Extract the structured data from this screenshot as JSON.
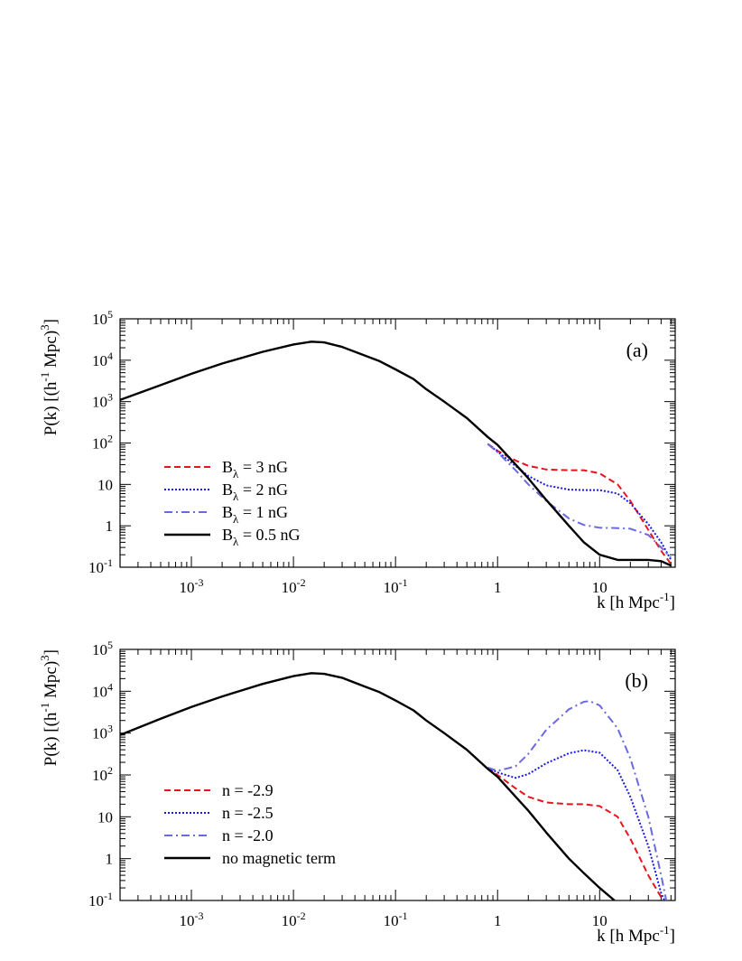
{
  "chart_data": [
    {
      "type": "line",
      "panel_label": "(a)",
      "xlabel": {
        "main": "k [h Mpc",
        "sup": "-1",
        "end": "]"
      },
      "ylabel": {
        "p1": "P(k) [(h",
        "s1": "-1",
        "p2": " Mpc)",
        "s2": "3",
        "p3": "]"
      },
      "xscale": "log",
      "yscale": "log",
      "xlim": [
        0.0002,
        55
      ],
      "ylim": [
        0.1,
        100000
      ],
      "x_ticks": [
        {
          "value": 0.001,
          "base": "10",
          "exp": "-3"
        },
        {
          "value": 0.01,
          "base": "10",
          "exp": "-2"
        },
        {
          "value": 0.1,
          "base": "10",
          "exp": "-1"
        },
        {
          "value": 1,
          "base": "1",
          "exp": ""
        },
        {
          "value": 10,
          "base": "10",
          "exp": ""
        }
      ],
      "y_ticks": [
        {
          "value": 0.1,
          "base": "10",
          "exp": "-1"
        },
        {
          "value": 1,
          "base": "1",
          "exp": ""
        },
        {
          "value": 10,
          "base": "10",
          "exp": ""
        },
        {
          "value": 100,
          "base": "10",
          "exp": "2"
        },
        {
          "value": 1000,
          "base": "10",
          "exp": "3"
        },
        {
          "value": 10000,
          "base": "10",
          "exp": "4"
        },
        {
          "value": 100000,
          "base": "10",
          "exp": "5"
        }
      ],
      "legend_position": "bottom-left",
      "series": [
        {
          "label": {
            "pre": "B",
            "sub": "λ",
            "post": " = 3 nG"
          },
          "color": "#e8141c",
          "style": "dashed",
          "x": [
            0.8,
            1,
            1.5,
            2,
            3,
            5,
            7,
            10,
            15,
            20,
            30,
            40,
            50
          ],
          "y": [
            95,
            65,
            38,
            28,
            23,
            22,
            22,
            18.5,
            10,
            4,
            0.8,
            0.25,
            0.12
          ]
        },
        {
          "label": {
            "pre": "B",
            "sub": "λ",
            "post": " = 2 nG"
          },
          "color": "#1a1ae6",
          "style": "dotted",
          "x": [
            0.8,
            1,
            1.5,
            2,
            3,
            5,
            7,
            10,
            15,
            20,
            30,
            40,
            50
          ],
          "y": [
            95,
            62,
            28,
            16,
            9.5,
            7.5,
            7.3,
            7.3,
            6,
            3.5,
            1.1,
            0.4,
            0.15
          ]
        },
        {
          "label": {
            "pre": "B",
            "sub": "λ",
            "post": " = 1 nG"
          },
          "color": "#6a6ae0",
          "style": "dashdot",
          "x": [
            0.8,
            1,
            1.5,
            2,
            3,
            5,
            7,
            10,
            15,
            20,
            30,
            40,
            50
          ],
          "y": [
            95,
            60,
            22,
            10,
            4,
            1.5,
            1.05,
            0.9,
            0.88,
            0.85,
            0.6,
            0.3,
            0.17
          ]
        },
        {
          "label": {
            "pre": "B",
            "sub": "λ",
            "post": " = 0.5 nG"
          },
          "color": "#000000",
          "style": "solid",
          "x": [
            0.0002,
            0.0005,
            0.001,
            0.002,
            0.005,
            0.01,
            0.015,
            0.02,
            0.03,
            0.05,
            0.07,
            0.1,
            0.15,
            0.2,
            0.3,
            0.5,
            0.8,
            1,
            2,
            3,
            5,
            7,
            10,
            15,
            20,
            30,
            40,
            50
          ],
          "y": [
            1100,
            2500,
            4700,
            8300,
            16000,
            24000,
            28000,
            27000,
            21000,
            13000,
            9500,
            6000,
            3500,
            2000,
            1000,
            400,
            140,
            90,
            14,
            4.2,
            1,
            0.4,
            0.2,
            0.15,
            0.15,
            0.15,
            0.14,
            0.11
          ]
        }
      ]
    },
    {
      "type": "line",
      "panel_label": "(b)",
      "xlabel": {
        "main": "k [h Mpc",
        "sup": "-1",
        "end": "]"
      },
      "ylabel": {
        "p1": "P(k) [(h",
        "s1": "-1",
        "p2": " Mpc)",
        "s2": "3",
        "p3": "]"
      },
      "xscale": "log",
      "yscale": "log",
      "xlim": [
        0.0002,
        55
      ],
      "ylim": [
        0.1,
        100000
      ],
      "x_ticks": [
        {
          "value": 0.001,
          "base": "10",
          "exp": "-3"
        },
        {
          "value": 0.01,
          "base": "10",
          "exp": "-2"
        },
        {
          "value": 0.1,
          "base": "10",
          "exp": "-1"
        },
        {
          "value": 1,
          "base": "1",
          "exp": ""
        },
        {
          "value": 10,
          "base": "10",
          "exp": ""
        }
      ],
      "y_ticks": [
        {
          "value": 0.1,
          "base": "10",
          "exp": "-1"
        },
        {
          "value": 1,
          "base": "1",
          "exp": ""
        },
        {
          "value": 10,
          "base": "10",
          "exp": ""
        },
        {
          "value": 100,
          "base": "10",
          "exp": "2"
        },
        {
          "value": 1000,
          "base": "10",
          "exp": "3"
        },
        {
          "value": 10000,
          "base": "10",
          "exp": "4"
        },
        {
          "value": 100000,
          "base": "10",
          "exp": "5"
        }
      ],
      "legend_position": "bottom-left",
      "series": [
        {
          "label": {
            "pre": "n = -2.9",
            "sub": "",
            "post": ""
          },
          "color": "#e8141c",
          "style": "dashed",
          "x": [
            0.8,
            1,
            1.5,
            2,
            3,
            5,
            7,
            10,
            15,
            20,
            30,
            40,
            45
          ],
          "y": [
            150,
            100,
            48,
            30,
            22,
            20,
            20,
            18,
            10,
            3,
            0.4,
            0.12,
            0.08
          ]
        },
        {
          "label": {
            "pre": "n = -2.5",
            "sub": "",
            "post": ""
          },
          "color": "#1a1ae6",
          "style": "dotted",
          "x": [
            0.8,
            1,
            1.5,
            2,
            3,
            5,
            7,
            10,
            15,
            20,
            30,
            40,
            45
          ],
          "y": [
            150,
            115,
            85,
            105,
            190,
            330,
            390,
            340,
            130,
            30,
            2,
            0.15,
            0.08
          ]
        },
        {
          "label": {
            "pre": "n = -2.0",
            "sub": "",
            "post": ""
          },
          "color": "#6a6ae0",
          "style": "dashdot",
          "x": [
            0.8,
            1,
            1.5,
            2,
            3,
            5,
            7,
            8,
            10,
            15,
            20,
            30,
            40,
            45
          ],
          "y": [
            150,
            125,
            160,
            320,
            1200,
            3700,
            5600,
            5800,
            4600,
            1300,
            250,
            10,
            0.4,
            0.1
          ]
        },
        {
          "label": {
            "pre": "no magnetic term",
            "sub": "",
            "post": ""
          },
          "color": "#000000",
          "style": "solid",
          "x": [
            0.0002,
            0.0005,
            0.001,
            0.002,
            0.005,
            0.01,
            0.015,
            0.02,
            0.03,
            0.05,
            0.07,
            0.1,
            0.15,
            0.2,
            0.3,
            0.5,
            0.8,
            1,
            2,
            3,
            5,
            7,
            10,
            14
          ],
          "y": [
            900,
            2200,
            4200,
            7500,
            15000,
            23000,
            27000,
            26000,
            21000,
            13000,
            9500,
            6000,
            3500,
            2000,
            1000,
            400,
            140,
            90,
            14,
            4.2,
            1,
            0.45,
            0.2,
            0.1
          ]
        }
      ]
    }
  ]
}
